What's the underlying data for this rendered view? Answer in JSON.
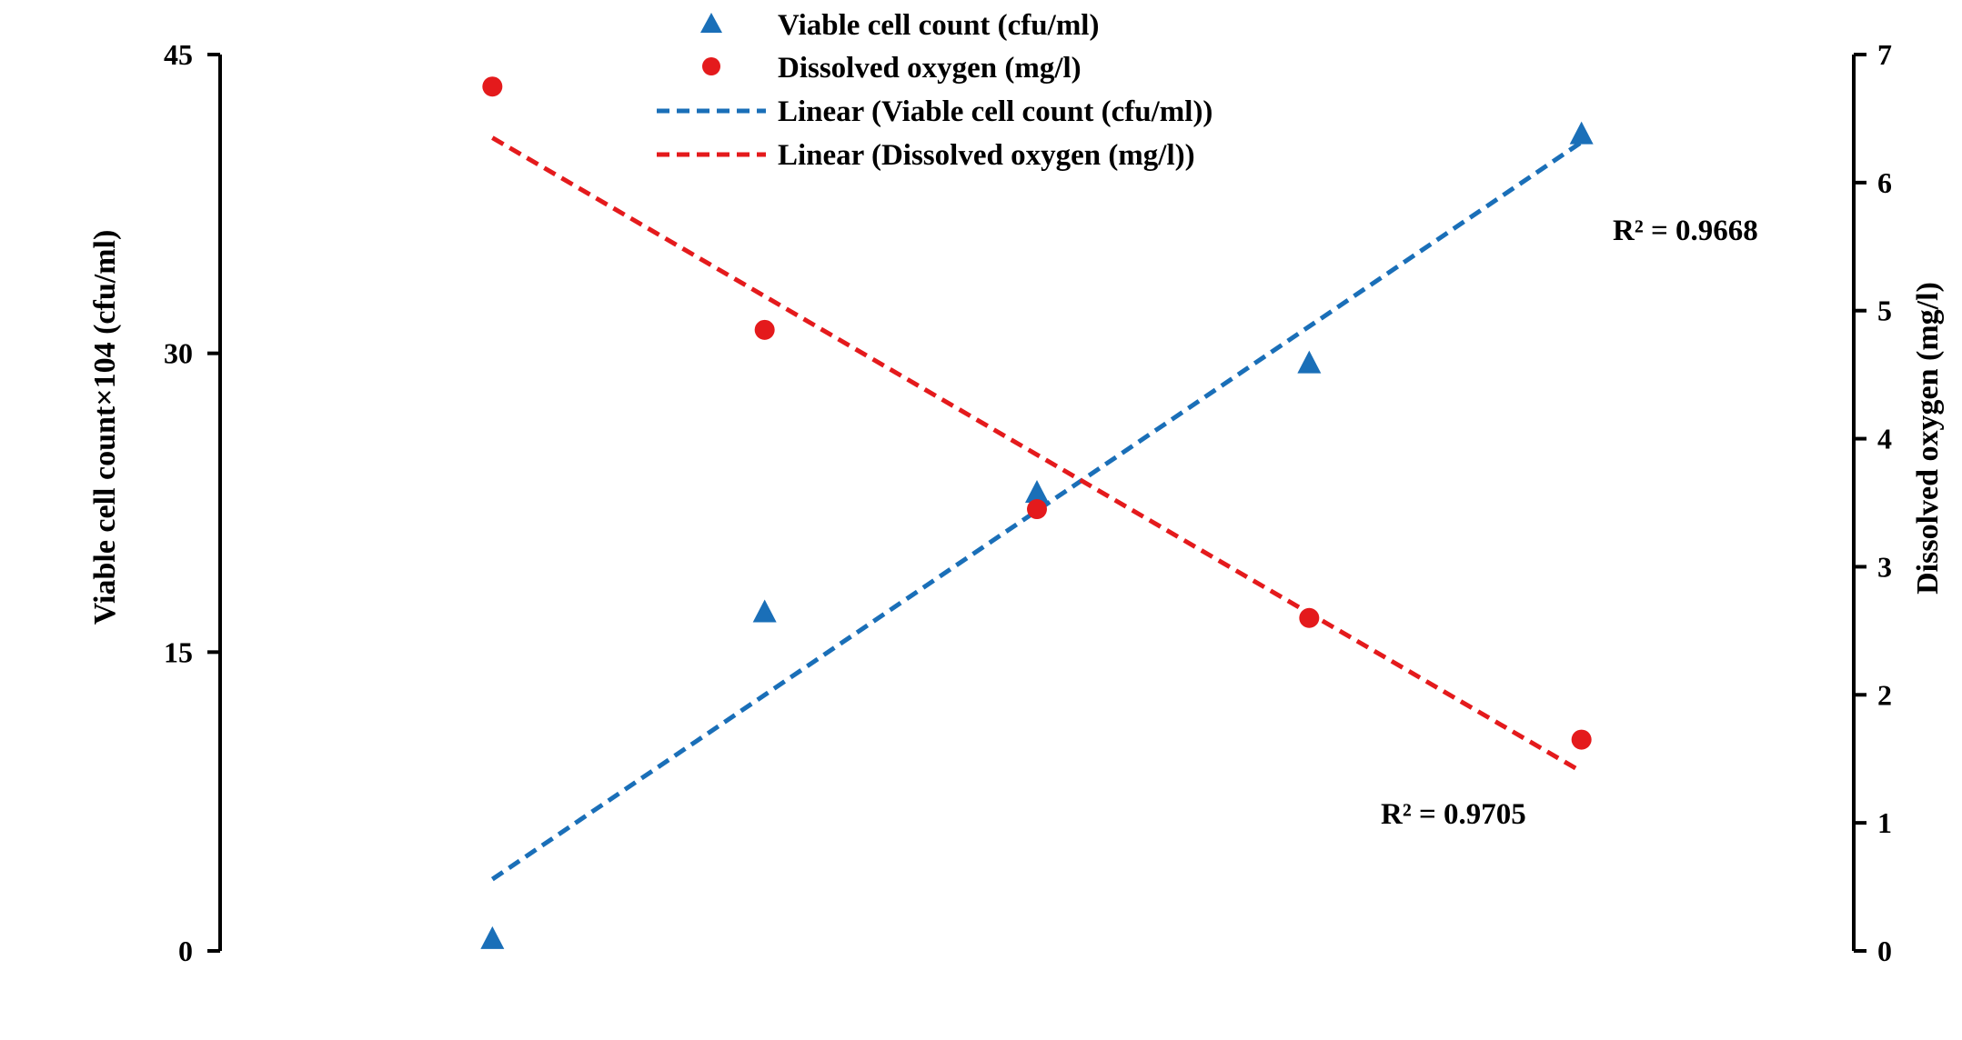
{
  "chart_data": {
    "type": "scatter",
    "title": "",
    "x": [
      1,
      2,
      3,
      4,
      5
    ],
    "xlim": [
      0,
      6
    ],
    "left_axis": {
      "label": "Viable cell count×104 (cfu/ml)",
      "ylim": [
        0,
        45
      ],
      "ticks": [
        "0",
        "15",
        "30",
        "45"
      ]
    },
    "right_axis": {
      "label": "Dissolved oxygen  (mg/l)",
      "ylim": [
        0,
        7
      ],
      "ticks": [
        "0",
        "1",
        "2",
        "3",
        "4",
        "5",
        "6",
        "7"
      ]
    },
    "series": [
      {
        "name": "Viable cell count (cfu/ml)",
        "axis": "left",
        "marker": "triangle",
        "color": "#1a6fb8",
        "values": [
          0.6,
          17.0,
          23.0,
          29.5,
          41.0
        ]
      },
      {
        "name": "Dissolved oxygen (mg/l)",
        "axis": "right",
        "marker": "circle",
        "color": "#e41a1c",
        "values": [
          6.75,
          4.85,
          3.45,
          2.6,
          1.65
        ]
      }
    ],
    "trendlines": [
      {
        "name": "Linear (Viable cell count (cfu/ml))",
        "axis": "left",
        "color": "#1a6fb8",
        "from": [
          1,
          3.6
        ],
        "to": [
          5,
          40.6
        ],
        "r2_label": "R² = 0.9668"
      },
      {
        "name": "Linear (Dissolved oxygen (mg/l))",
        "axis": "right",
        "color": "#e41a1c",
        "from": [
          1,
          6.35
        ],
        "to": [
          5,
          1.4
        ],
        "r2_label": "R² = 0.9705"
      }
    ],
    "legend_position": "top-center",
    "grid": false
  }
}
